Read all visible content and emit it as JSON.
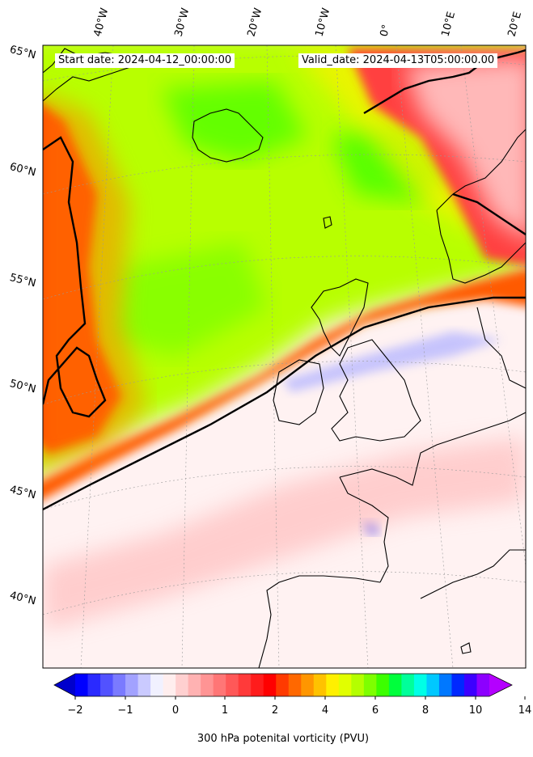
{
  "map": {
    "projection": "polar-stereographic",
    "region": "North Atlantic and Western Europe",
    "field": "300 hPa potential vorticity",
    "start_label": "Start date: 2024-04-12_00:00:00",
    "valid_label": "Valid_date: 2024-04-13T05:00:00.00",
    "lat_labels": [
      "65°N",
      "60°N",
      "55°N",
      "50°N",
      "45°N",
      "40°N"
    ],
    "lon_labels": [
      "40°W",
      "30°W",
      "20°W",
      "10°W",
      "0°",
      "10°E",
      "20°E"
    ],
    "contour_color": "#000000",
    "coastline_color": "#000000",
    "gridline_style": "dotted-gray"
  },
  "colorbar": {
    "label": "300 hPa potenital vorticity (PVU)",
    "ticks": [
      "−2",
      "−1",
      "0",
      "1",
      "2",
      "4",
      "6",
      "8",
      "10",
      "14"
    ],
    "extend": "both",
    "colors": [
      "#0000ff",
      "#2a2aff",
      "#5252ff",
      "#7a7aff",
      "#a2a2ff",
      "#cacaff",
      "#f1f1ff",
      "#ffeeee",
      "#ffd0d0",
      "#ffb2b2",
      "#ff9494",
      "#ff7676",
      "#ff5858",
      "#ff3a3a",
      "#ff1c1c",
      "#ff0000",
      "#ff3a00",
      "#ff6800",
      "#ff9600",
      "#ffc200",
      "#fff000",
      "#e1ff00",
      "#b4ff00",
      "#7eff00",
      "#3cff00",
      "#00ff3c",
      "#00ff9a",
      "#00ffe6",
      "#00c8ff",
      "#0078ff",
      "#0028ff",
      "#3c00ff",
      "#8c00ff"
    ],
    "under_color": "#0000cc",
    "over_color": "#b400ff"
  }
}
